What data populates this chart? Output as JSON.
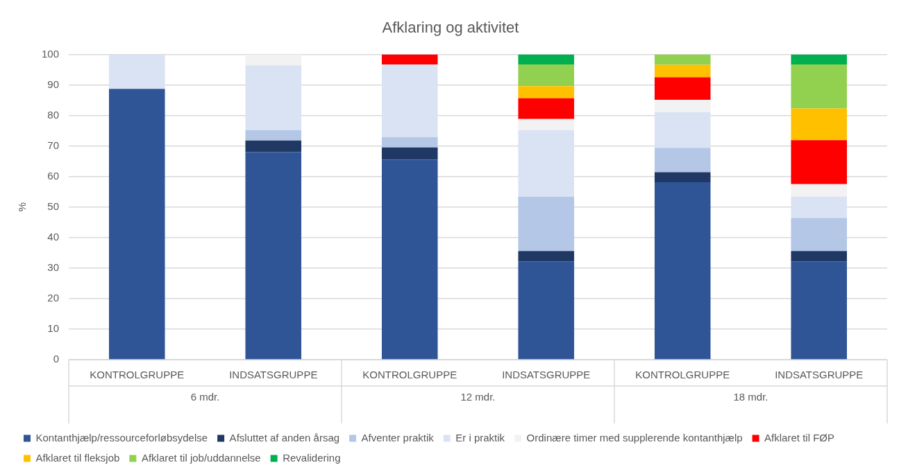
{
  "chart_data": {
    "type": "bar",
    "title": "Afklaring og aktivitet",
    "ylabel": "%",
    "categories": [
      "KONTROLGRUPPE",
      "INDSATSGRUPPE",
      "KONTROLGRUPPE",
      "INDSATSGRUPPE",
      "KONTROLGRUPPE",
      "INDSATSGRUPPE"
    ],
    "annotations": [
      "6 mdr.",
      "12 mdr.",
      "18 mdr."
    ],
    "stacked": true,
    "ylim": [
      0,
      100
    ],
    "yticks": [
      0,
      10,
      20,
      30,
      40,
      50,
      60,
      70,
      80,
      90,
      100
    ],
    "grid": "y",
    "legend": "bottom",
    "series": [
      {
        "name": "Kontanthjælp/ressourceforløbsydelse",
        "color": "#2f5597",
        "values": [
          88.7,
          68.0,
          65.5,
          32.2,
          58.1,
          32.2
        ]
      },
      {
        "name": "Afsluttet af anden årsag",
        "color": "#203864",
        "values": [
          0,
          3.8,
          4.0,
          3.4,
          3.3,
          3.4
        ]
      },
      {
        "name": "Afventer praktik",
        "color": "#b4c7e7",
        "values": [
          0,
          3.4,
          3.4,
          17.8,
          8.0,
          10.8
        ]
      },
      {
        "name": "Er i praktik",
        "color": "#dae3f3",
        "values": [
          11.3,
          21.2,
          23.8,
          21.8,
          11.7,
          7.0
        ]
      },
      {
        "name": "Ordinære timer med supplerende kontanthjælp",
        "color": "#f2f2f2",
        "values": [
          0,
          3.6,
          0,
          3.6,
          4.0,
          4.1
        ]
      },
      {
        "name": "Afklaret til FØP",
        "color": "#ff0000",
        "values": [
          0,
          0,
          3.3,
          6.8,
          7.4,
          14.4
        ]
      },
      {
        "name": "Afklaret til fleksjob",
        "color": "#ffc000",
        "values": [
          0,
          0,
          0,
          4.0,
          4.1,
          10.4
        ]
      },
      {
        "name": "Afklaret til job/uddannelse",
        "color": "#92d050",
        "values": [
          0,
          0,
          0,
          7.1,
          3.4,
          14.4
        ]
      },
      {
        "name": "Revalidering",
        "color": "#00b050",
        "values": [
          0,
          0,
          0,
          3.3,
          0,
          3.3
        ]
      }
    ]
  }
}
